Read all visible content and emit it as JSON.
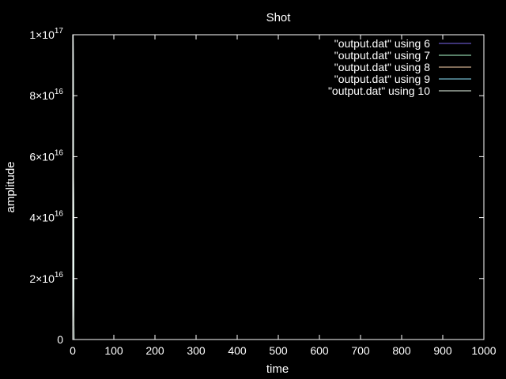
{
  "chart_data": {
    "type": "line",
    "title": "Shot",
    "xlabel": "time",
    "ylabel": "amplitude",
    "xlim": [
      0,
      1000
    ],
    "ylim": [
      0,
      1e+17
    ],
    "x_ticks": [
      {
        "value": 0,
        "label": "0"
      },
      {
        "value": 100,
        "label": "100"
      },
      {
        "value": 200,
        "label": "200"
      },
      {
        "value": 300,
        "label": "300"
      },
      {
        "value": 400,
        "label": "400"
      },
      {
        "value": 500,
        "label": "500"
      },
      {
        "value": 600,
        "label": "600"
      },
      {
        "value": 700,
        "label": "700"
      },
      {
        "value": 800,
        "label": "800"
      },
      {
        "value": 900,
        "label": "900"
      },
      {
        "value": 1000,
        "label": "1000"
      }
    ],
    "y_ticks": [
      {
        "value": 0,
        "mantissa": "0",
        "exp": ""
      },
      {
        "value": 2e+16,
        "mantissa": "2×10",
        "exp": "16"
      },
      {
        "value": 4e+16,
        "mantissa": "4×10",
        "exp": "16"
      },
      {
        "value": 6e+16,
        "mantissa": "6×10",
        "exp": "16"
      },
      {
        "value": 8e+16,
        "mantissa": "8×10",
        "exp": "16"
      },
      {
        "value": 1e+17,
        "mantissa": "1×10",
        "exp": "17"
      }
    ],
    "grid": false,
    "legend_position": "top-right",
    "series": [
      {
        "name": "\"output.dat\" using 6",
        "color": "#7b68ee",
        "x": [
          0,
          1,
          2,
          3,
          1000
        ],
        "y": [
          0,
          1e+17,
          5e+16,
          0,
          0
        ]
      },
      {
        "name": "\"output.dat\" using 7",
        "color": "#b0ffd0",
        "x": [
          0,
          1,
          2,
          3,
          1000
        ],
        "y": [
          0,
          1e+17,
          5e+16,
          0,
          0
        ]
      },
      {
        "name": "\"output.dat\" using 8",
        "color": "#ffd8b0",
        "x": [
          0,
          1,
          2,
          3,
          1000
        ],
        "y": [
          0,
          1e+17,
          5e+16,
          0,
          0
        ]
      },
      {
        "name": "\"output.dat\" using 9",
        "color": "#90e8ff",
        "x": [
          0,
          1,
          2,
          3,
          1000
        ],
        "y": [
          0,
          1e+17,
          5e+16,
          0,
          0
        ]
      },
      {
        "name": "\"output.dat\" using 10",
        "color": "#f0fff0",
        "x": [
          0,
          1,
          2,
          3,
          1000
        ],
        "y": [
          0,
          1e+17,
          5e+16,
          0,
          0
        ]
      }
    ]
  }
}
